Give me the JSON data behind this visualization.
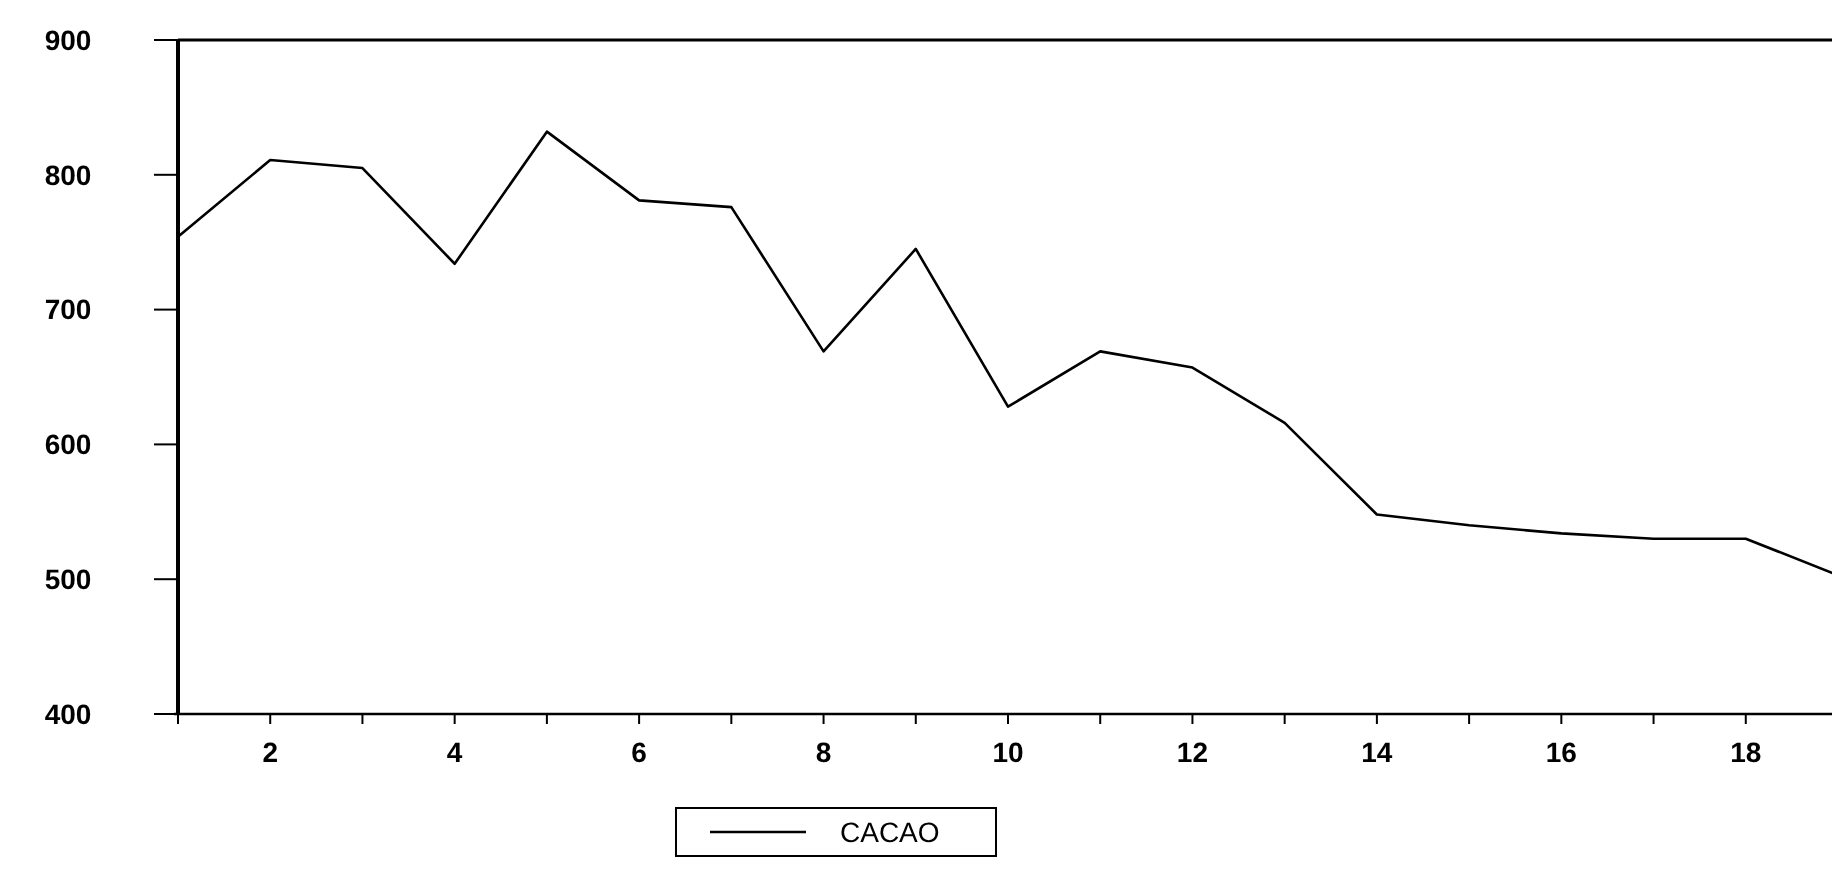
{
  "chart_data": {
    "type": "line",
    "x": [
      1,
      2,
      3,
      4,
      5,
      6,
      7,
      8,
      9,
      10,
      11,
      12,
      13,
      14,
      15,
      16,
      17,
      18,
      19
    ],
    "series": [
      {
        "name": "CACAO",
        "color": "#000000",
        "values": [
          754,
          811,
          805,
          734,
          832,
          781,
          776,
          669,
          745,
          628,
          669,
          657,
          616,
          548,
          540,
          534,
          530,
          530,
          503
        ]
      }
    ],
    "xlim": [
      1,
      19
    ],
    "xticks": [
      {
        "value": 1,
        "label": null
      },
      2,
      {
        "value": 3,
        "label": null
      },
      4,
      {
        "value": 5,
        "label": null
      },
      6,
      {
        "value": 7,
        "label": null
      },
      8,
      {
        "value": 9,
        "label": null
      },
      10,
      {
        "value": 11,
        "label": null
      },
      12,
      {
        "value": 13,
        "label": null
      },
      14,
      {
        "value": 15,
        "label": null
      },
      16,
      {
        "value": 17,
        "label": null
      },
      18,
      {
        "value": 19,
        "label": null
      }
    ],
    "ylim": [
      400,
      900
    ],
    "yticks": [
      400,
      500,
      600,
      700,
      800,
      900
    ],
    "legend": "bottom",
    "grid": false,
    "marker": "none",
    "line_style": "solid"
  }
}
